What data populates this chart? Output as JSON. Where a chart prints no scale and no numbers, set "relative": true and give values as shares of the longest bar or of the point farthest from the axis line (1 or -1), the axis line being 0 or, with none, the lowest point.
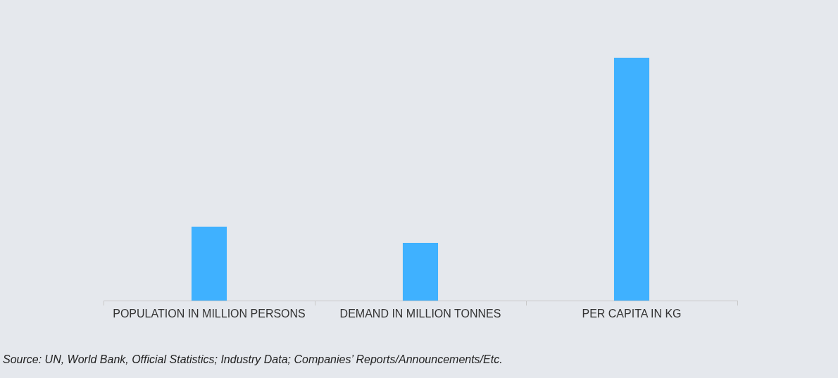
{
  "chart_data": {
    "type": "bar",
    "categories": [
      "POPULATION IN MILLION PERSONS",
      "DEMAND IN MILLION TONNES",
      "PER CAPITA IN KG"
    ],
    "values": [
      0.304,
      0.238,
      1
    ],
    "color": "#3fb1ff",
    "relative": true,
    "grid": false,
    "legend": false,
    "annotations": [
      "Source: UN, World Bank, Official Statistics; Industry Data; Companies’ Reports/Announcements/Etc."
    ]
  }
}
